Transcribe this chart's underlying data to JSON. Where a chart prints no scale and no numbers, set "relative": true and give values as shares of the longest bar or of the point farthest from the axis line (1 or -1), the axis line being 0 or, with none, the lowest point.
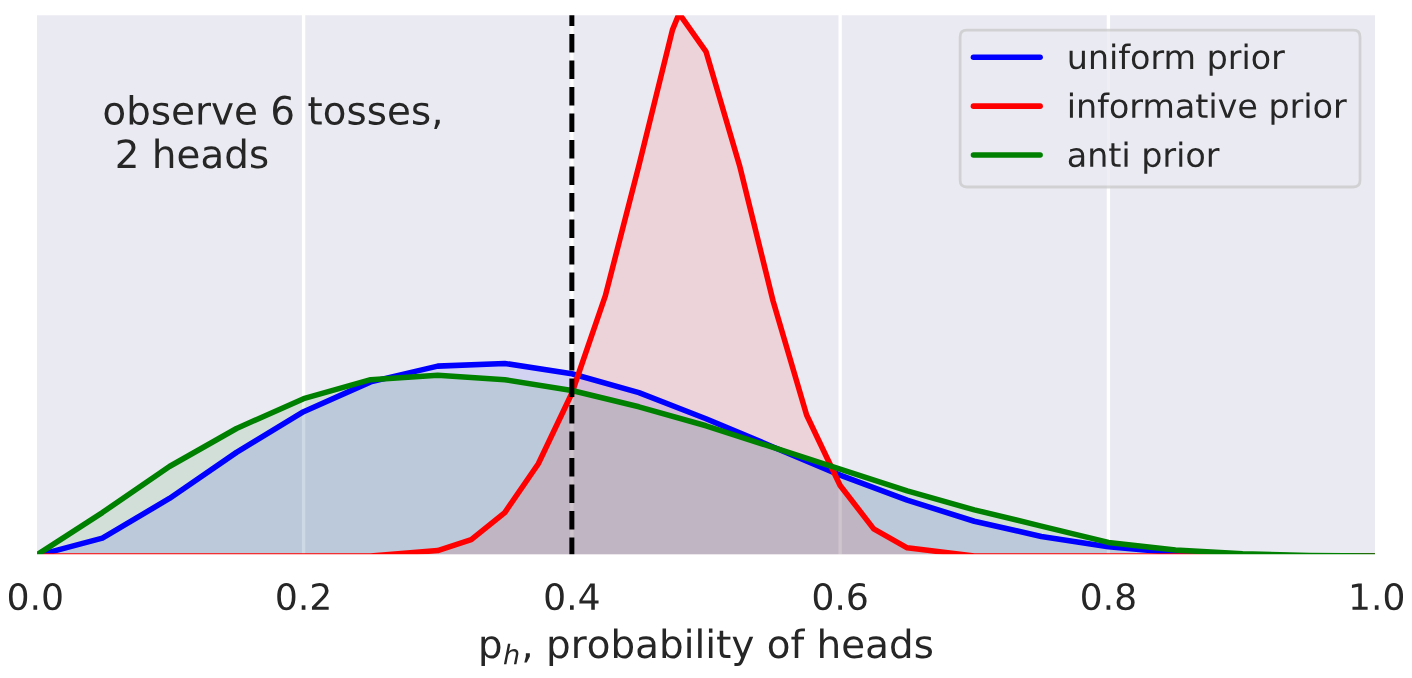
{
  "chart_data": {
    "type": "area",
    "relative": true,
    "xlabel": "p$_{h}$, probability of heads",
    "xlim": [
      0.0,
      1.0
    ],
    "xticks": [
      {
        "value": 0.0,
        "label": "0.0"
      },
      0.2,
      0.4,
      0.6,
      0.8,
      {
        "value": 1.0,
        "label": "1.0"
      }
    ],
    "grid": "x",
    "legend": "top right",
    "annotations": [
      "observe 6 tosses,\n 2 heads"
    ],
    "ref_lines": [
      {
        "axis": "x",
        "value": 0.4,
        "label": null,
        "color": "#000000",
        "line_style": "dashed"
      }
    ],
    "series": [
      {
        "name": "uniform prior",
        "color": "#0000ff",
        "x": [
          0,
          0.05,
          0.1,
          0.15,
          0.2,
          0.25,
          0.3,
          0.35,
          0.4,
          0.45,
          0.5,
          0.55,
          0.6,
          0.65,
          0.7,
          0.75,
          0.8,
          0.85,
          0.9,
          0.95,
          1.0
        ],
        "values": [
          0,
          0.033,
          0.106,
          0.191,
          0.266,
          0.321,
          0.35,
          0.355,
          0.336,
          0.301,
          0.253,
          0.201,
          0.149,
          0.103,
          0.064,
          0.036,
          0.017,
          0.006,
          0.001,
          0,
          0
        ]
      },
      {
        "name": "informative prior",
        "color": "#ff0000",
        "x": [
          0,
          0.25,
          0.3,
          0.325,
          0.35,
          0.375,
          0.4,
          0.425,
          0.45,
          0.475,
          0.48,
          0.5,
          0.525,
          0.55,
          0.575,
          0.6,
          0.625,
          0.65,
          0.7,
          1.0
        ],
        "values": [
          0,
          0,
          0.01,
          0.03,
          0.08,
          0.17,
          0.3,
          0.48,
          0.72,
          0.97,
          1.0,
          0.93,
          0.72,
          0.47,
          0.26,
          0.13,
          0.05,
          0.015,
          0,
          0
        ]
      },
      {
        "name": "anti prior",
        "color": "#008000",
        "x": [
          0,
          0.05,
          0.1,
          0.15,
          0.2,
          0.25,
          0.3,
          0.35,
          0.4,
          0.45,
          0.5,
          0.55,
          0.6,
          0.65,
          0.7,
          0.75,
          0.8,
          0.85,
          0.9,
          0.95,
          1.0
        ],
        "values": [
          0,
          0.08,
          0.165,
          0.235,
          0.29,
          0.325,
          0.333,
          0.325,
          0.305,
          0.275,
          0.24,
          0.2,
          0.16,
          0.12,
          0.085,
          0.055,
          0.025,
          0.011,
          0.004,
          0.001,
          0
        ]
      }
    ]
  }
}
